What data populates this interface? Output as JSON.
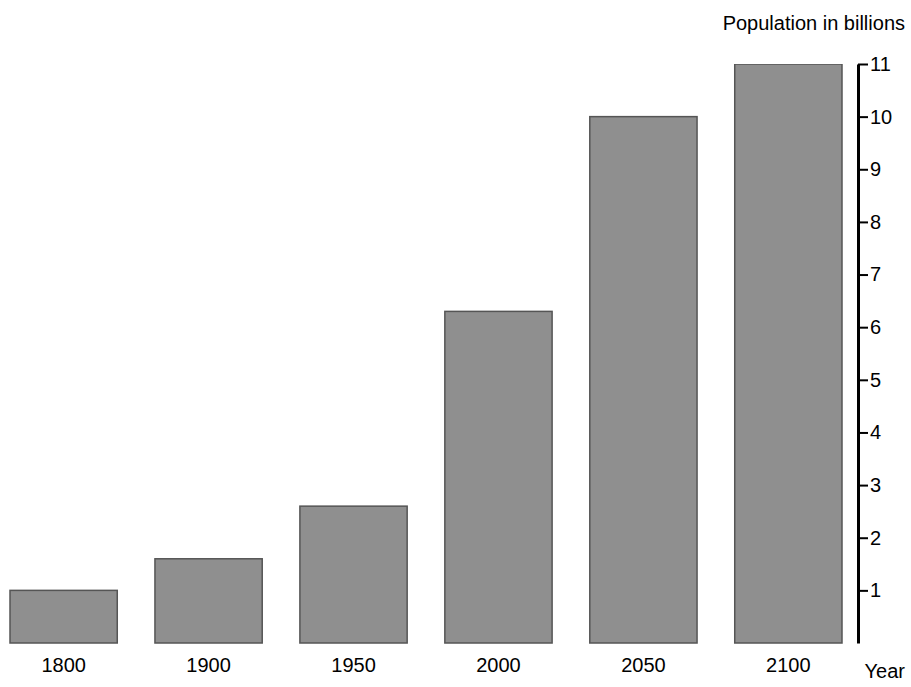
{
  "chart_data": {
    "type": "bar",
    "y_label": "Population in billions",
    "x_label": "Year",
    "categories": [
      "1800",
      "1900",
      "1950",
      "2000",
      "2050",
      "2100"
    ],
    "values": [
      1.0,
      1.6,
      2.6,
      6.3,
      10.0,
      11.0
    ],
    "color": "#8f8f8f",
    "ylim": [
      0,
      11
    ],
    "yticks": [
      1,
      2,
      3,
      4,
      5,
      6,
      7,
      8,
      9,
      10,
      11
    ],
    "grid": false
  }
}
